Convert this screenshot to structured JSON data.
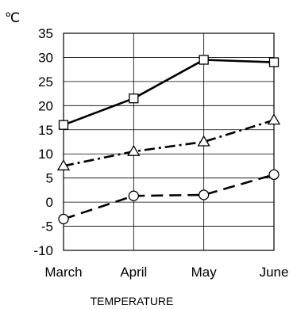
{
  "chart_data": {
    "type": "line",
    "title": "",
    "unit_label": "℃",
    "xlabel": "TEMPERATURE",
    "ylabel": "",
    "categories": [
      "March",
      "April",
      "May",
      "June"
    ],
    "ylim": [
      -10,
      35
    ],
    "yticks": [
      35,
      30,
      25,
      20,
      15,
      10,
      5,
      0,
      -5,
      -10
    ],
    "grid": true,
    "legend": "none",
    "series": [
      {
        "marker": "square",
        "line_style": "solid",
        "values": [
          16,
          21.5,
          29.5,
          29
        ]
      },
      {
        "marker": "triangle",
        "line_style": "dash-dot",
        "values": [
          7.5,
          10.5,
          12.5,
          17
        ]
      },
      {
        "marker": "circle",
        "line_style": "dashed",
        "values": [
          -3.5,
          1.3,
          1.5,
          5.7
        ]
      }
    ]
  }
}
